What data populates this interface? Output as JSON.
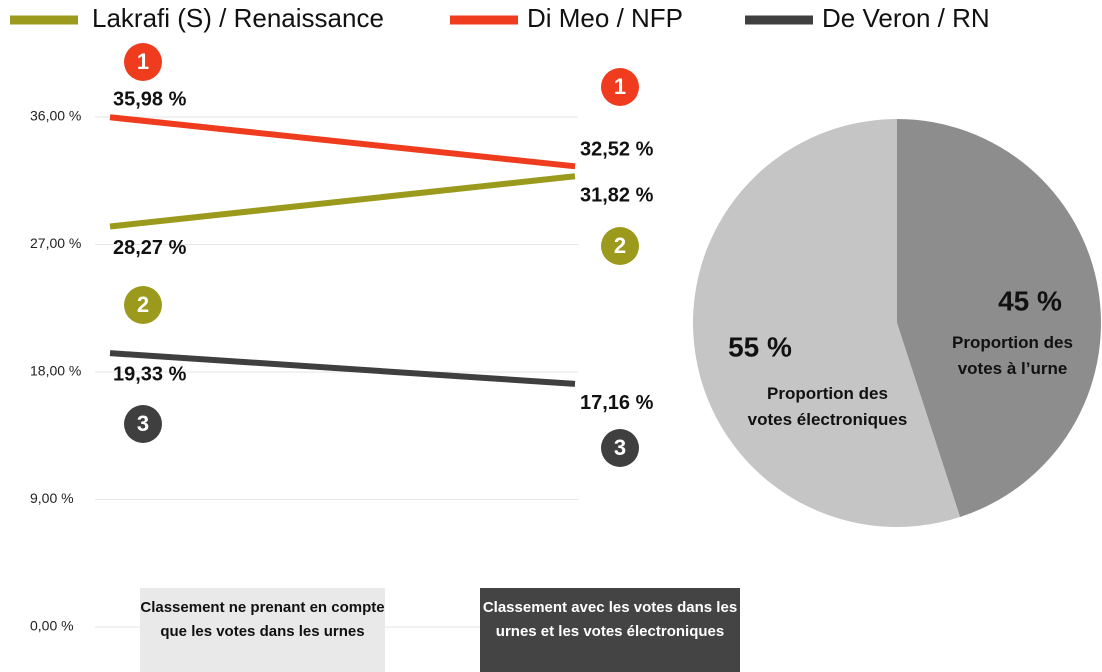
{
  "chart_data": [
    {
      "type": "line",
      "categories": [
        "Classement ne prenant en compte que les votes dans les urnes",
        "Classement avec les votes dans les urnes et les votes électroniques"
      ],
      "series": [
        {
          "name": "Lakrafi (S) / Renaissance",
          "color": "#9b9a1c",
          "values": [
            28.27,
            31.82
          ],
          "value_labels": [
            "28,27 %",
            "31,82 %"
          ],
          "ranks": [
            "2",
            "2"
          ]
        },
        {
          "name": "Di Meo / NFP",
          "color": "#f03c1e",
          "values": [
            35.98,
            32.52
          ],
          "value_labels": [
            "35,98 %",
            "32,52 %"
          ],
          "ranks": [
            "1",
            "1"
          ]
        },
        {
          "name": "De Veron / RN",
          "color": "#3f3f3f",
          "values": [
            19.33,
            17.16
          ],
          "value_labels": [
            "19,33 %",
            "17,16 %"
          ],
          "ranks": [
            "3",
            "3"
          ]
        }
      ],
      "ylim": [
        0,
        36
      ],
      "yticks": [
        {
          "value": 0,
          "label": "0,00 %"
        },
        {
          "value": 9,
          "label": "9,00 %"
        },
        {
          "value": 18,
          "label": "18,00 %"
        },
        {
          "value": 27,
          "label": "27,00 %"
        },
        {
          "value": 36,
          "label": "36,00 %"
        }
      ],
      "grid": true
    },
    {
      "type": "pie",
      "categories": [
        "Proportion des votes à l’urne",
        "Proportion des votes électroniques"
      ],
      "values": [
        45,
        55
      ],
      "value_labels": [
        "45 %",
        "55 %"
      ],
      "colors": [
        "#8d8d8d",
        "#c5c5c5"
      ]
    }
  ]
}
